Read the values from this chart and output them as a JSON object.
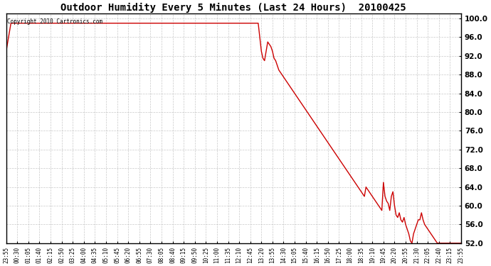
{
  "title": "Outdoor Humidity Every 5 Minutes (Last 24 Hours)  20100425",
  "copyright_text": "Copyright 2010 Cartronics.com",
  "line_color": "#cc0000",
  "background_color": "#ffffff",
  "plot_background": "#ffffff",
  "grid_color": "#bbbbbb",
  "ylim": [
    52.0,
    101.0
  ],
  "yticks": [
    52.0,
    56.0,
    60.0,
    64.0,
    68.0,
    72.0,
    76.0,
    80.0,
    84.0,
    88.0,
    92.0,
    96.0,
    100.0
  ],
  "x_labels": [
    "23:55",
    "00:30",
    "01:05",
    "01:40",
    "02:15",
    "02:50",
    "03:25",
    "04:00",
    "04:35",
    "05:10",
    "05:45",
    "06:20",
    "06:55",
    "07:30",
    "08:05",
    "08:40",
    "09:15",
    "09:50",
    "10:25",
    "11:00",
    "11:35",
    "12:10",
    "12:45",
    "13:20",
    "13:55",
    "14:30",
    "15:05",
    "15:40",
    "16:15",
    "16:50",
    "17:25",
    "18:00",
    "18:35",
    "19:10",
    "19:45",
    "20:20",
    "20:55",
    "21:30",
    "22:05",
    "22:40",
    "23:15",
    "23:55"
  ],
  "n_points": 288,
  "humidity_data": [
    [
      0,
      93.0
    ],
    [
      1,
      95.0
    ],
    [
      2,
      97.0
    ],
    [
      3,
      99.0
    ],
    [
      4,
      99.0
    ],
    [
      5,
      99.0
    ],
    [
      6,
      99.0
    ],
    [
      7,
      99.0
    ],
    [
      8,
      99.0
    ],
    [
      9,
      99.0
    ],
    [
      10,
      99.0
    ],
    [
      11,
      99.0
    ],
    [
      12,
      99.0
    ],
    [
      13,
      99.0
    ],
    [
      14,
      99.0
    ],
    [
      15,
      99.0
    ],
    [
      16,
      99.0
    ],
    [
      17,
      99.0
    ],
    [
      18,
      99.0
    ],
    [
      19,
      99.0
    ],
    [
      20,
      99.0
    ],
    [
      21,
      99.0
    ],
    [
      22,
      99.0
    ],
    [
      23,
      99.0
    ],
    [
      24,
      99.0
    ],
    [
      25,
      99.0
    ],
    [
      26,
      99.0
    ],
    [
      27,
      99.0
    ],
    [
      28,
      99.0
    ],
    [
      29,
      99.0
    ],
    [
      30,
      99.0
    ],
    [
      31,
      99.0
    ],
    [
      32,
      99.0
    ],
    [
      33,
      99.0
    ],
    [
      34,
      99.0
    ],
    [
      35,
      99.0
    ],
    [
      36,
      99.0
    ],
    [
      37,
      99.0
    ],
    [
      38,
      99.0
    ],
    [
      39,
      99.0
    ],
    [
      40,
      99.0
    ],
    [
      41,
      99.0
    ],
    [
      42,
      99.0
    ],
    [
      43,
      99.0
    ],
    [
      44,
      99.0
    ],
    [
      45,
      99.0
    ],
    [
      46,
      99.0
    ],
    [
      47,
      99.0
    ],
    [
      48,
      99.0
    ],
    [
      49,
      99.0
    ],
    [
      50,
      99.0
    ],
    [
      51,
      99.0
    ],
    [
      52,
      99.0
    ],
    [
      53,
      99.0
    ],
    [
      54,
      99.0
    ],
    [
      55,
      99.0
    ],
    [
      56,
      99.0
    ],
    [
      57,
      99.0
    ],
    [
      58,
      99.0
    ],
    [
      59,
      99.0
    ],
    [
      60,
      99.0
    ],
    [
      61,
      99.0
    ],
    [
      62,
      99.0
    ],
    [
      63,
      99.0
    ],
    [
      64,
      99.0
    ],
    [
      65,
      99.0
    ],
    [
      66,
      99.0
    ],
    [
      67,
      99.0
    ],
    [
      68,
      99.0
    ],
    [
      69,
      99.0
    ],
    [
      70,
      99.0
    ],
    [
      71,
      99.0
    ],
    [
      72,
      99.0
    ],
    [
      73,
      99.0
    ],
    [
      74,
      99.0
    ],
    [
      75,
      99.0
    ],
    [
      76,
      99.0
    ],
    [
      77,
      99.0
    ],
    [
      78,
      99.0
    ],
    [
      79,
      99.0
    ],
    [
      80,
      99.0
    ],
    [
      81,
      99.0
    ],
    [
      82,
      99.0
    ],
    [
      83,
      99.0
    ],
    [
      84,
      99.0
    ],
    [
      85,
      99.0
    ],
    [
      86,
      99.0
    ],
    [
      87,
      99.0
    ],
    [
      88,
      99.0
    ],
    [
      89,
      99.0
    ],
    [
      90,
      99.0
    ],
    [
      91,
      99.0
    ],
    [
      92,
      99.0
    ],
    [
      93,
      99.0
    ],
    [
      94,
      99.0
    ],
    [
      95,
      99.0
    ],
    [
      96,
      99.0
    ],
    [
      97,
      99.0
    ],
    [
      98,
      99.0
    ],
    [
      99,
      99.0
    ],
    [
      100,
      99.0
    ],
    [
      101,
      99.0
    ],
    [
      102,
      99.0
    ],
    [
      103,
      99.0
    ],
    [
      104,
      99.0
    ],
    [
      105,
      99.0
    ],
    [
      106,
      99.0
    ],
    [
      107,
      99.0
    ],
    [
      108,
      99.0
    ],
    [
      109,
      99.0
    ],
    [
      110,
      99.0
    ],
    [
      111,
      99.0
    ],
    [
      112,
      99.0
    ],
    [
      113,
      99.0
    ],
    [
      114,
      99.0
    ],
    [
      115,
      99.0
    ],
    [
      116,
      99.0
    ],
    [
      117,
      99.0
    ],
    [
      118,
      99.0
    ],
    [
      119,
      99.0
    ],
    [
      120,
      99.0
    ],
    [
      121,
      99.0
    ],
    [
      122,
      99.0
    ],
    [
      123,
      99.0
    ],
    [
      124,
      99.0
    ],
    [
      125,
      99.0
    ],
    [
      126,
      99.0
    ],
    [
      127,
      99.0
    ],
    [
      128,
      99.0
    ],
    [
      129,
      99.0
    ],
    [
      130,
      99.0
    ],
    [
      131,
      99.0
    ],
    [
      132,
      99.0
    ],
    [
      133,
      99.0
    ],
    [
      134,
      99.0
    ],
    [
      135,
      99.0
    ],
    [
      136,
      99.0
    ],
    [
      137,
      99.0
    ],
    [
      138,
      99.0
    ],
    [
      139,
      99.0
    ],
    [
      140,
      99.0
    ],
    [
      141,
      99.0
    ],
    [
      142,
      99.0
    ],
    [
      143,
      99.0
    ],
    [
      144,
      99.0
    ],
    [
      145,
      99.0
    ],
    [
      146,
      99.0
    ],
    [
      147,
      99.0
    ],
    [
      148,
      99.0
    ],
    [
      149,
      99.0
    ],
    [
      150,
      99.0
    ],
    [
      151,
      99.0
    ],
    [
      152,
      99.0
    ],
    [
      153,
      99.0
    ],
    [
      154,
      99.0
    ],
    [
      155,
      99.0
    ],
    [
      156,
      99.0
    ],
    [
      157,
      99.0
    ],
    [
      158,
      99.0
    ],
    [
      159,
      99.0
    ],
    [
      160,
      96.0
    ],
    [
      161,
      93.0
    ],
    [
      162,
      91.5
    ],
    [
      163,
      91.0
    ],
    [
      164,
      93.0
    ],
    [
      165,
      95.0
    ],
    [
      166,
      94.5
    ],
    [
      167,
      94.0
    ],
    [
      168,
      93.0
    ],
    [
      169,
      91.5
    ],
    [
      170,
      91.0
    ],
    [
      171,
      90.0
    ],
    [
      172,
      89.0
    ],
    [
      173,
      88.5
    ],
    [
      174,
      88.0
    ],
    [
      175,
      87.5
    ],
    [
      176,
      87.0
    ],
    [
      177,
      86.5
    ],
    [
      178,
      86.0
    ],
    [
      179,
      85.5
    ],
    [
      180,
      85.0
    ],
    [
      181,
      84.5
    ],
    [
      182,
      84.0
    ],
    [
      183,
      83.5
    ],
    [
      184,
      83.0
    ],
    [
      185,
      82.5
    ],
    [
      186,
      82.0
    ],
    [
      187,
      81.5
    ],
    [
      188,
      81.0
    ],
    [
      189,
      80.5
    ],
    [
      190,
      80.0
    ],
    [
      191,
      79.5
    ],
    [
      192,
      79.0
    ],
    [
      193,
      78.5
    ],
    [
      194,
      78.0
    ],
    [
      195,
      77.5
    ],
    [
      196,
      77.0
    ],
    [
      197,
      76.5
    ],
    [
      198,
      76.0
    ],
    [
      199,
      75.5
    ],
    [
      200,
      75.0
    ],
    [
      201,
      74.5
    ],
    [
      202,
      74.0
    ],
    [
      203,
      73.5
    ],
    [
      204,
      73.0
    ],
    [
      205,
      72.5
    ],
    [
      206,
      72.0
    ],
    [
      207,
      71.5
    ],
    [
      208,
      71.0
    ],
    [
      209,
      70.5
    ],
    [
      210,
      70.0
    ],
    [
      211,
      69.5
    ],
    [
      212,
      69.0
    ],
    [
      213,
      68.5
    ],
    [
      214,
      68.0
    ],
    [
      215,
      67.5
    ],
    [
      216,
      67.0
    ],
    [
      217,
      66.5
    ],
    [
      218,
      66.0
    ],
    [
      219,
      65.5
    ],
    [
      220,
      65.0
    ],
    [
      221,
      64.5
    ],
    [
      222,
      64.0
    ],
    [
      223,
      63.5
    ],
    [
      224,
      63.0
    ],
    [
      225,
      62.5
    ],
    [
      226,
      62.0
    ],
    [
      227,
      64.0
    ],
    [
      228,
      63.5
    ],
    [
      229,
      63.0
    ],
    [
      230,
      62.5
    ],
    [
      231,
      62.0
    ],
    [
      232,
      61.5
    ],
    [
      233,
      61.0
    ],
    [
      234,
      60.5
    ],
    [
      235,
      60.0
    ],
    [
      236,
      59.5
    ],
    [
      237,
      59.0
    ],
    [
      238,
      65.0
    ],
    [
      239,
      62.0
    ],
    [
      240,
      61.0
    ],
    [
      241,
      60.5
    ],
    [
      242,
      59.0
    ],
    [
      243,
      62.0
    ],
    [
      244,
      63.0
    ],
    [
      245,
      60.0
    ],
    [
      246,
      58.0
    ],
    [
      247,
      57.5
    ],
    [
      248,
      58.5
    ],
    [
      249,
      57.0
    ],
    [
      250,
      56.5
    ],
    [
      251,
      57.5
    ],
    [
      252,
      56.0
    ],
    [
      253,
      55.0
    ],
    [
      254,
      54.0
    ],
    [
      255,
      52.5
    ],
    [
      256,
      52.0
    ],
    [
      257,
      54.0
    ],
    [
      258,
      55.0
    ],
    [
      259,
      56.0
    ],
    [
      260,
      57.0
    ],
    [
      261,
      57.0
    ],
    [
      262,
      58.5
    ],
    [
      263,
      57.0
    ],
    [
      264,
      56.0
    ],
    [
      265,
      55.5
    ],
    [
      266,
      55.0
    ],
    [
      267,
      54.5
    ],
    [
      268,
      54.0
    ],
    [
      269,
      53.5
    ],
    [
      270,
      53.0
    ],
    [
      271,
      52.5
    ],
    [
      272,
      52.0
    ],
    [
      273,
      52.0
    ],
    [
      274,
      52.0
    ],
    [
      275,
      52.0
    ],
    [
      276,
      52.0
    ],
    [
      277,
      52.0
    ],
    [
      278,
      52.0
    ],
    [
      279,
      52.0
    ],
    [
      280,
      52.0
    ],
    [
      281,
      52.0
    ],
    [
      282,
      52.0
    ],
    [
      283,
      52.0
    ],
    [
      284,
      52.0
    ],
    [
      285,
      52.0
    ],
    [
      286,
      52.0
    ],
    [
      287,
      52.0
    ]
  ]
}
